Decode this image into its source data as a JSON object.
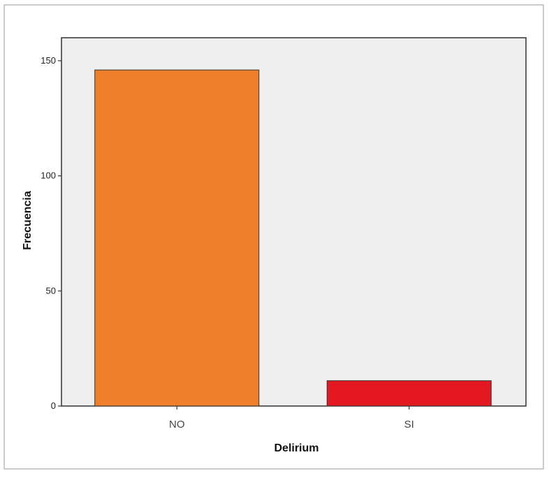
{
  "chart_data": {
    "type": "bar",
    "categories": [
      "NO",
      "SI"
    ],
    "values": [
      146,
      11
    ],
    "xlabel": "Delirium",
    "ylabel": "Frecuencia",
    "ylim": [
      0,
      160
    ],
    "yticks": [
      0,
      50,
      100,
      150
    ],
    "grid": false,
    "legend": "none",
    "colors": [
      "#f07f2a",
      "#e31820"
    ],
    "plot_background": "#efefef",
    "bar_outline": "#333333"
  }
}
